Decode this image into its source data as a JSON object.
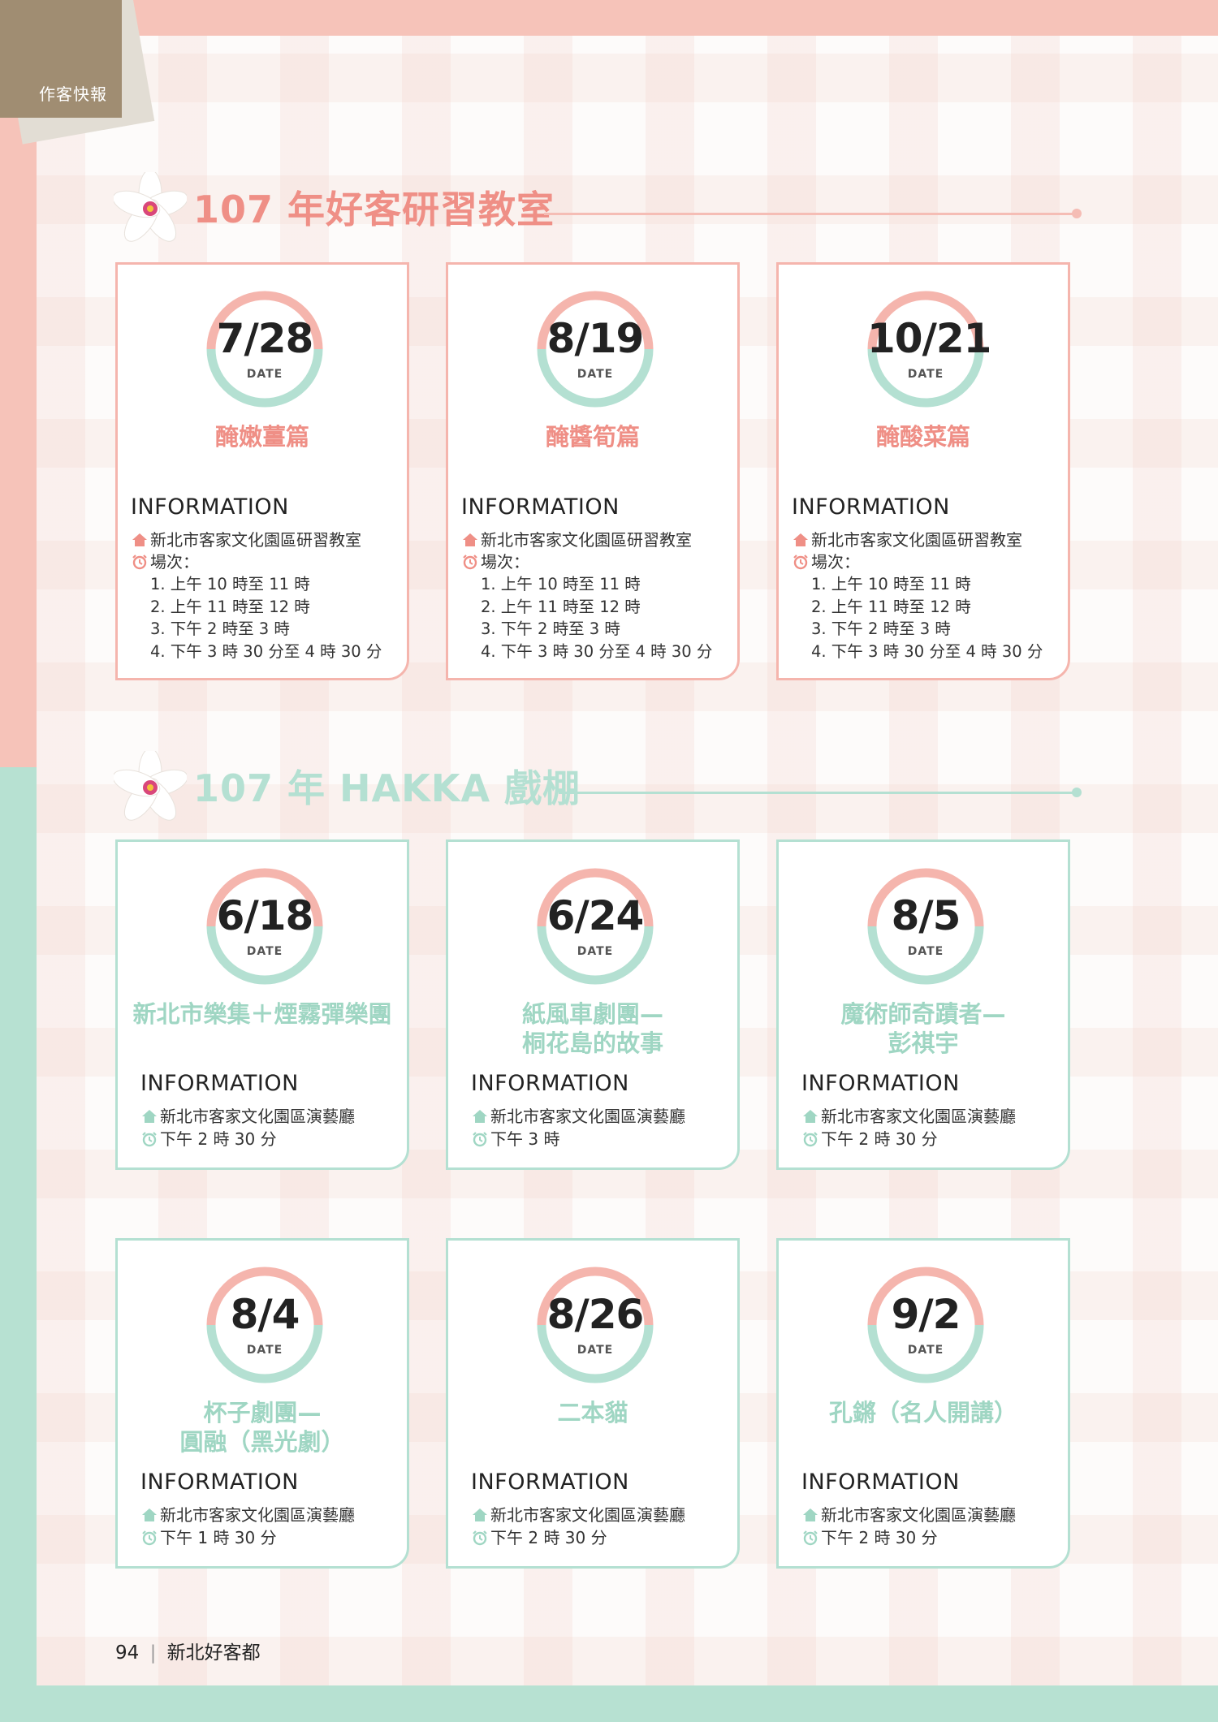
{
  "header": {
    "tab_label": "作客快報"
  },
  "colors": {
    "pink": "#ef8f86",
    "mint": "#9fd6c3",
    "ring_pink": "#f5b5ad",
    "ring_mint": "#b4e0d2"
  },
  "section1": {
    "title": "107 年好客研習教室",
    "cards": [
      {
        "date": "7/28",
        "date_label": "DATE",
        "title": "醃嫩薑篇",
        "info_heading": "INFORMATION",
        "location": "新北市客家文化園區研習教室",
        "time_label": "場次：",
        "sessions": [
          "1. 上午 10 時至 11 時",
          "2. 上午 11 時至 12 時",
          "3. 下午 2 時至 3 時",
          "4. 下午 3 時 30 分至 4 時 30 分"
        ]
      },
      {
        "date": "8/19",
        "date_label": "DATE",
        "title": "醃醬筍篇",
        "info_heading": "INFORMATION",
        "location": "新北市客家文化園區研習教室",
        "time_label": "場次：",
        "sessions": [
          "1. 上午 10 時至 11 時",
          "2. 上午 11 時至 12 時",
          "3. 下午 2 時至 3 時",
          "4. 下午 3 時 30 分至 4 時 30 分"
        ]
      },
      {
        "date": "10/21",
        "date_label": "DATE",
        "title": "醃酸菜篇",
        "info_heading": "INFORMATION",
        "location": "新北市客家文化園區研習教室",
        "time_label": "場次：",
        "sessions": [
          "1. 上午 10 時至 11 時",
          "2. 上午 11 時至 12 時",
          "3. 下午 2 時至 3 時",
          "4. 下午 3 時 30 分至 4 時 30 分"
        ]
      }
    ]
  },
  "section2": {
    "title": "107 年 HAKKA 戲棚",
    "cards": [
      {
        "date": "6/18",
        "date_label": "DATE",
        "title_lines": [
          "新北市樂集＋煙霧彈樂團"
        ],
        "info_heading": "INFORMATION",
        "location": "新北市客家文化園區演藝廳",
        "time": "下午 2 時 30 分"
      },
      {
        "date": "6/24",
        "date_label": "DATE",
        "title_lines": [
          "紙風車劇團—",
          "桐花島的故事"
        ],
        "info_heading": "INFORMATION",
        "location": "新北市客家文化園區演藝廳",
        "time": "下午 3 時"
      },
      {
        "date": "8/5",
        "date_label": "DATE",
        "title_lines": [
          "魔術師奇蹟者—",
          "彭祺宇"
        ],
        "info_heading": "INFORMATION",
        "location": "新北市客家文化園區演藝廳",
        "time": "下午 2 時 30 分"
      },
      {
        "date": "8/4",
        "date_label": "DATE",
        "title_lines": [
          "杯子劇團—",
          "圓融（黑光劇）"
        ],
        "info_heading": "INFORMATION",
        "location": "新北市客家文化園區演藝廳",
        "time": "下午 1 時 30 分"
      },
      {
        "date": "8/26",
        "date_label": "DATE",
        "title_lines": [
          "二本貓"
        ],
        "info_heading": "INFORMATION",
        "location": "新北市客家文化園區演藝廳",
        "time": "下午 2 時 30 分"
      },
      {
        "date": "9/2",
        "date_label": "DATE",
        "title_lines": [
          "孔鏘（名人開講）"
        ],
        "info_heading": "INFORMATION",
        "location": "新北市客家文化園區演藝廳",
        "time": "下午 2 時 30 分"
      }
    ]
  },
  "footer": {
    "page_number": "94",
    "publication": "新北好客都"
  }
}
